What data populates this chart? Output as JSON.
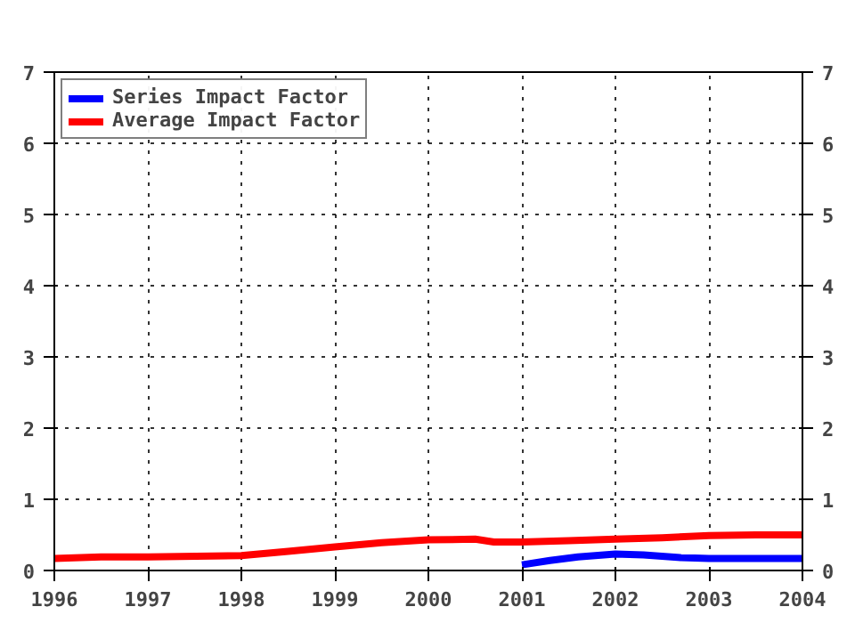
{
  "chart_data": {
    "type": "line",
    "xlim": [
      1996,
      2004
    ],
    "xticks": [
      1996,
      1997,
      1998,
      1999,
      2000,
      2001,
      2002,
      2003,
      2004
    ],
    "ylim": [
      0,
      7
    ],
    "yticks": [
      0,
      1,
      2,
      3,
      4,
      5,
      6,
      7
    ],
    "y2lim": [
      0,
      7
    ],
    "y2ticks": [
      0,
      1,
      2,
      3,
      4,
      5,
      6,
      7
    ],
    "grid": true,
    "legend": "top left",
    "line_style": "solid",
    "marker": "none",
    "series": [
      {
        "name": "Series Impact Factor",
        "color": "#0000ff",
        "x": [
          2001,
          2001.3,
          2001.6,
          2002,
          2002.3,
          2002.7,
          2003,
          2004
        ],
        "values": [
          0.08,
          0.14,
          0.19,
          0.23,
          0.22,
          0.18,
          0.17,
          0.17
        ]
      },
      {
        "name": "Average Impact Factor",
        "color": "#ff0000",
        "x": [
          1996,
          1996.5,
          1997,
          1998,
          1998.5,
          1999,
          1999.5,
          2000,
          2000.5,
          2000.7,
          2001,
          2001.5,
          2002,
          2002.5,
          2003,
          2003.5,
          2004
        ],
        "values": [
          0.17,
          0.19,
          0.19,
          0.21,
          0.27,
          0.33,
          0.39,
          0.43,
          0.44,
          0.4,
          0.4,
          0.42,
          0.44,
          0.46,
          0.49,
          0.5,
          0.5
        ]
      }
    ]
  }
}
